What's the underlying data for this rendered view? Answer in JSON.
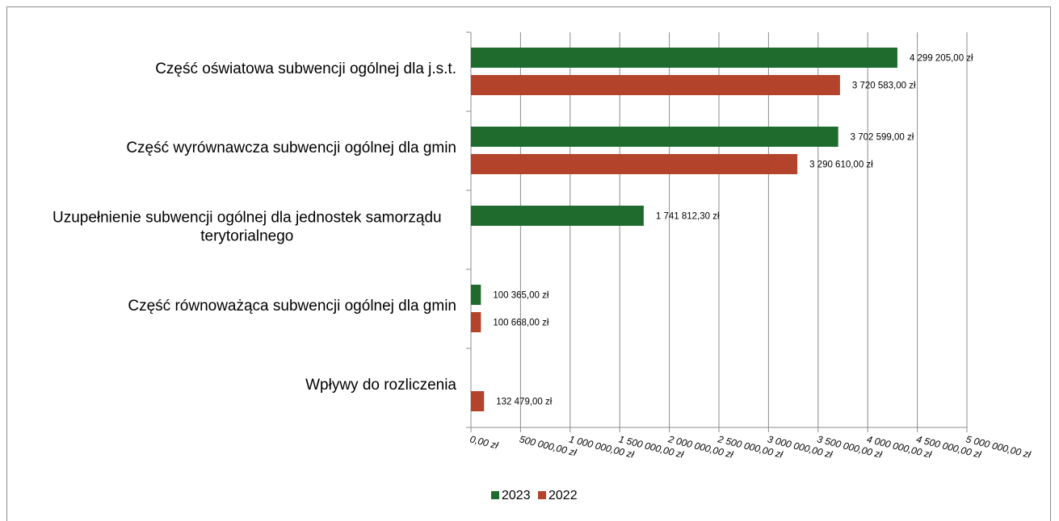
{
  "chart_data": {
    "type": "bar",
    "orientation": "horizontal",
    "categories": [
      [
        "Część oświatowa subwencji ogólnej dla j.s.t."
      ],
      [
        "Część wyrównawcza subwencji ogólnej dla gmin"
      ],
      [
        "Uzupełnienie subwencji ogólnej dla jednostek samorządu",
        "terytorialnego"
      ],
      [
        "Część równoważąca subwencji ogólnej dla gmin"
      ],
      [
        "Wpływy do rozliczenia"
      ]
    ],
    "series": [
      {
        "name": "2023",
        "color": "#1f6b2e",
        "values": [
          4299205.0,
          3702599.0,
          1741812.3,
          100365.0,
          null
        ],
        "labels": [
          "4 299 205,00 zł",
          "3 702 599,00 zł",
          "1 741 812,30 zł",
          "100 365,00 zł",
          ""
        ]
      },
      {
        "name": "2022",
        "color": "#b3432a",
        "values": [
          3720583.0,
          3290610.0,
          null,
          100668.0,
          132479.0
        ],
        "labels": [
          "3 720 583,00 zł",
          "3 290 610,00 zł",
          "",
          "100 668,00 zł",
          "132 479,00 zł"
        ]
      }
    ],
    "xlim": [
      0,
      5000000
    ],
    "xticks": [
      0,
      500000,
      1000000,
      1500000,
      2000000,
      2500000,
      3000000,
      3500000,
      4000000,
      4500000,
      5000000
    ],
    "xtick_labels": [
      "0,00 zł",
      "500 000,00 zł",
      "1 000 000,00 zł",
      "1 500 000,00 zł",
      "2 000 000,00 zł",
      "2 500 000,00 zł",
      "3 000 000,00 zł",
      "3 500 000,00 zł",
      "4 000 000,00 zł",
      "4 500 000,00 zł",
      "5 000 000,00 zł"
    ],
    "grid": true,
    "legend_position": "bottom",
    "title": "",
    "xlabel": "",
    "ylabel": ""
  }
}
